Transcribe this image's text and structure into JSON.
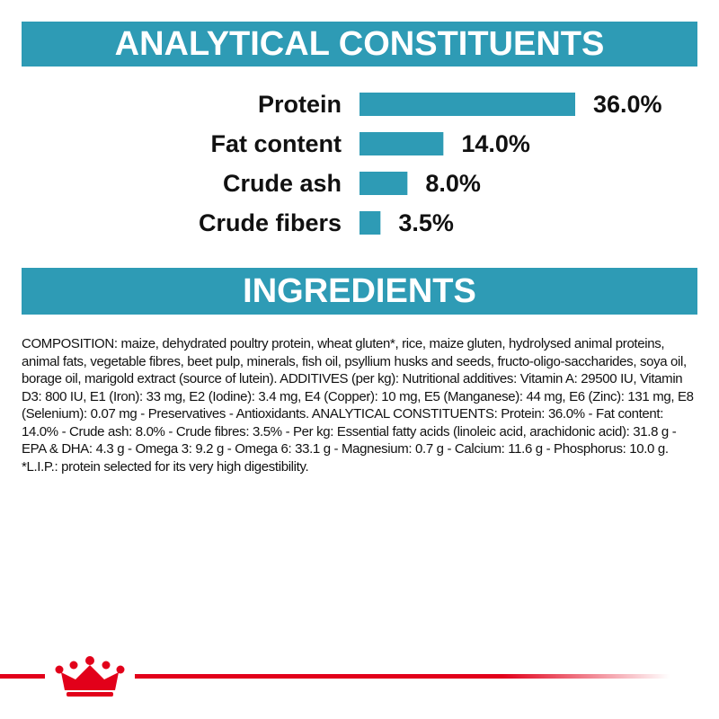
{
  "chart_data": {
    "type": "bar",
    "title": "ANALYTICAL CONSTITUENTS",
    "categories": [
      "Protein",
      "Fat content",
      "Crude ash",
      "Crude fibers"
    ],
    "values": [
      36.0,
      14.0,
      8.0,
      3.5
    ],
    "value_labels": [
      "36.0%",
      "14.0%",
      "8.0%",
      "3.5%"
    ],
    "color": "#2e9bb5"
  },
  "ingredients": {
    "title": "INGREDIENTS",
    "text": "COMPOSITION: maize, dehydrated poultry protein, wheat gluten*, rice, maize gluten, hydrolysed animal proteins, animal fats, vegetable fibres, beet pulp, minerals, fish oil, psyllium husks and seeds, fructo-oligo-saccharides, soya oil, borage oil, marigold extract (source of lutein). ADDITIVES (per kg): Nutritional additives: Vitamin A: 29500 IU, Vitamin D3: 800 IU, E1 (Iron): 33 mg, E2 (Iodine): 3.4 mg, E4 (Copper): 10 mg, E5 (Manganese): 44 mg, E6 (Zinc): 131 mg, E8 (Selenium): 0.07 mg - Preservatives - Antioxidants. ANALYTICAL CONSTITUENTS: Protein: 36.0% - Fat content: 14.0% - Crude ash: 8.0% - Crude fibres: 3.5% - Per kg: Essential fatty acids (linoleic acid, arachidonic acid): 31.8 g - EPA & DHA: 4.3 g - Omega 3: 9.2 g - Omega 6: 33.1 g - Magnesium: 0.7 g - Calcium: 11.6 g - Phosphorus: 10.0 g. *L.I.P.: protein selected for its very high digestibility."
  }
}
